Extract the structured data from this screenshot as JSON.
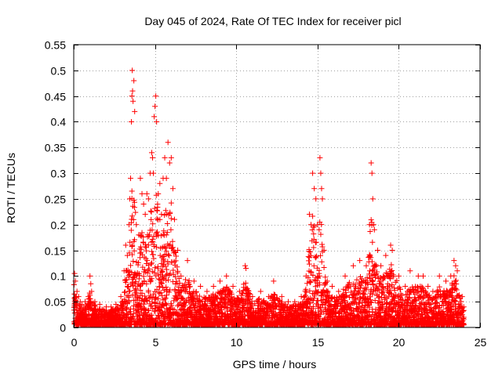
{
  "chart_data": {
    "type": "scatter",
    "title": "Day 045 of 2024, Rate Of TEC Index for receiver picl",
    "xlabel": "GPS time / hours",
    "ylabel": "ROTI / TECUs",
    "xlim": [
      0,
      25
    ],
    "ylim": [
      0,
      0.55
    ],
    "x_ticks": [
      0,
      5,
      10,
      15,
      20,
      25
    ],
    "y_ticks": [
      0,
      0.05,
      0.1,
      0.15,
      0.2,
      0.25,
      0.3,
      0.35,
      0.4,
      0.45,
      0.5,
      0.55
    ],
    "grid": true,
    "marker": "+",
    "color": "#ff0000",
    "series": [
      {
        "name": "ROTI",
        "points": [
          [
            0.05,
            0.105
          ],
          [
            0.1,
            0.09
          ],
          [
            0.2,
            0.07
          ],
          [
            0.3,
            0.06
          ],
          [
            0.4,
            0.05
          ],
          [
            0.5,
            0.045
          ],
          [
            0.7,
            0.05
          ],
          [
            0.9,
            0.06
          ],
          [
            1.0,
            0.1
          ],
          [
            1.05,
            0.085
          ],
          [
            1.1,
            0.07
          ],
          [
            1.3,
            0.05
          ],
          [
            1.6,
            0.045
          ],
          [
            2.0,
            0.04
          ],
          [
            2.3,
            0.04
          ],
          [
            2.6,
            0.045
          ],
          [
            2.9,
            0.06
          ],
          [
            3.1,
            0.11
          ],
          [
            3.2,
            0.16
          ],
          [
            3.3,
            0.14
          ],
          [
            3.4,
            0.2
          ],
          [
            3.45,
            0.25
          ],
          [
            3.5,
            0.29
          ],
          [
            3.55,
            0.4
          ],
          [
            3.58,
            0.45
          ],
          [
            3.6,
            0.5
          ],
          [
            3.62,
            0.46
          ],
          [
            3.65,
            0.44
          ],
          [
            3.7,
            0.48
          ],
          [
            3.75,
            0.42
          ],
          [
            3.85,
            0.2
          ],
          [
            4.0,
            0.18
          ],
          [
            4.1,
            0.29
          ],
          [
            4.2,
            0.26
          ],
          [
            4.3,
            0.24
          ],
          [
            4.4,
            0.22
          ],
          [
            4.5,
            0.26
          ],
          [
            4.6,
            0.25
          ],
          [
            4.7,
            0.3
          ],
          [
            4.8,
            0.34
          ],
          [
            4.85,
            0.33
          ],
          [
            4.9,
            0.3
          ],
          [
            4.95,
            0.41
          ],
          [
            5.0,
            0.43
          ],
          [
            5.05,
            0.45
          ],
          [
            5.1,
            0.4
          ],
          [
            5.2,
            0.26
          ],
          [
            5.3,
            0.28
          ],
          [
            5.4,
            0.22
          ],
          [
            5.5,
            0.29
          ],
          [
            5.6,
            0.33
          ],
          [
            5.7,
            0.29
          ],
          [
            5.8,
            0.36
          ],
          [
            5.9,
            0.32
          ],
          [
            6.0,
            0.33
          ],
          [
            6.1,
            0.27
          ],
          [
            6.2,
            0.21
          ],
          [
            6.4,
            0.15
          ],
          [
            6.6,
            0.1
          ],
          [
            7.0,
            0.13
          ],
          [
            7.4,
            0.09
          ],
          [
            7.8,
            0.08
          ],
          [
            8.2,
            0.07
          ],
          [
            8.6,
            0.08
          ],
          [
            9.0,
            0.09
          ],
          [
            9.4,
            0.1
          ],
          [
            9.8,
            0.08
          ],
          [
            10.2,
            0.07
          ],
          [
            10.55,
            0.12
          ],
          [
            10.6,
            0.115
          ],
          [
            11.0,
            0.06
          ],
          [
            11.5,
            0.07
          ],
          [
            12.0,
            0.06
          ],
          [
            12.3,
            0.09
          ],
          [
            12.8,
            0.06
          ],
          [
            13.2,
            0.05
          ],
          [
            13.6,
            0.05
          ],
          [
            14.0,
            0.06
          ],
          [
            14.3,
            0.1
          ],
          [
            14.5,
            0.22
          ],
          [
            14.6,
            0.2
          ],
          [
            14.7,
            0.3
          ],
          [
            14.8,
            0.27
          ],
          [
            14.9,
            0.25
          ],
          [
            15.0,
            0.2
          ],
          [
            15.1,
            0.19
          ],
          [
            15.15,
            0.33
          ],
          [
            15.2,
            0.3
          ],
          [
            15.25,
            0.27
          ],
          [
            15.3,
            0.25
          ],
          [
            15.4,
            0.15
          ],
          [
            15.6,
            0.09
          ],
          [
            15.9,
            0.08
          ],
          [
            16.3,
            0.07
          ],
          [
            16.7,
            0.1
          ],
          [
            17.2,
            0.12
          ],
          [
            17.6,
            0.13
          ],
          [
            18.0,
            0.12
          ],
          [
            18.2,
            0.2
          ],
          [
            18.3,
            0.32
          ],
          [
            18.35,
            0.3
          ],
          [
            18.4,
            0.25
          ],
          [
            18.45,
            0.2
          ],
          [
            18.5,
            0.19
          ],
          [
            18.7,
            0.15
          ],
          [
            18.9,
            0.12
          ],
          [
            19.2,
            0.14
          ],
          [
            19.5,
            0.16
          ],
          [
            19.6,
            0.15
          ],
          [
            20.0,
            0.1
          ],
          [
            20.4,
            0.08
          ],
          [
            20.7,
            0.11
          ],
          [
            21.2,
            0.1
          ],
          [
            21.5,
            0.1
          ],
          [
            21.8,
            0.08
          ],
          [
            22.1,
            0.07
          ],
          [
            22.5,
            0.1
          ],
          [
            22.9,
            0.09
          ],
          [
            23.2,
            0.1
          ],
          [
            23.4,
            0.13
          ],
          [
            23.5,
            0.12
          ],
          [
            23.6,
            0.11
          ],
          [
            23.9,
            0.06
          ],
          [
            24.0,
            0.04
          ]
        ]
      }
    ]
  }
}
